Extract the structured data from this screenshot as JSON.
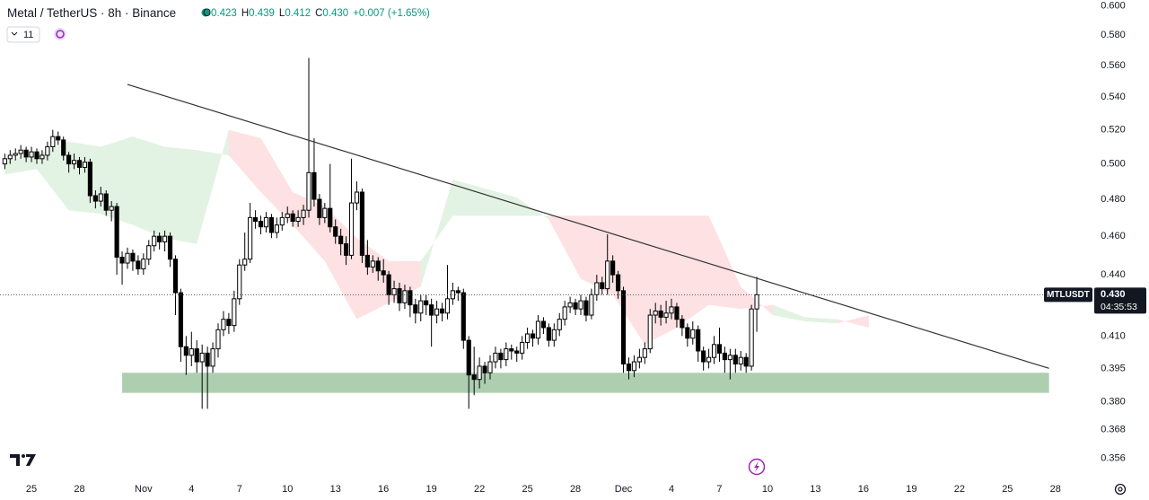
{
  "header": {
    "symbol": "Metal / TetherUS · 8h · Binance",
    "ohlc_names": [
      "O",
      "H",
      "L",
      "C"
    ],
    "ohlc_values": [
      {
        "value": 0.423,
        "label": "0.423"
      },
      {
        "value": 0.439,
        "label": "0.439"
      },
      {
        "value": 0.412,
        "label": "0.412"
      },
      {
        "value": 0.43,
        "label": "0.430"
      }
    ],
    "change": "+0.007 (+1.65%)",
    "indicators": "11"
  },
  "chart_data": {
    "type": "candlestick",
    "log": true,
    "up_color": "#ffffff",
    "down_color": "#000000",
    "outline_color": "#000000",
    "xlim": [
      0.1,
      204.6
    ],
    "ylim": [
      0.349,
      0.604
    ],
    "xticks": [
      {
        "value": 6,
        "label": "25"
      },
      {
        "value": 15,
        "label": "28"
      },
      {
        "value": 27,
        "label": "Nov"
      },
      {
        "value": 36,
        "label": "4"
      },
      {
        "value": 45,
        "label": "7"
      },
      {
        "value": 54,
        "label": "10"
      },
      {
        "value": 63,
        "label": "13"
      },
      {
        "value": 72,
        "label": "16"
      },
      {
        "value": 81,
        "label": "19"
      },
      {
        "value": 90,
        "label": "22"
      },
      {
        "value": 99,
        "label": "25"
      },
      {
        "value": 108,
        "label": "28"
      },
      {
        "value": 117,
        "label": "Dec"
      },
      {
        "value": 126,
        "label": "4"
      },
      {
        "value": 135,
        "label": "7"
      },
      {
        "value": 144,
        "label": "10"
      },
      {
        "value": 153,
        "label": "13"
      },
      {
        "value": 162,
        "label": "16"
      },
      {
        "value": 171,
        "label": "19"
      },
      {
        "value": 180,
        "label": "22"
      },
      {
        "value": 189,
        "label": "25"
      },
      {
        "value": 198,
        "label": "28"
      }
    ],
    "yticks": [
      {
        "value": 0.6,
        "label": "0.600"
      },
      {
        "value": 0.58,
        "label": "0.580"
      },
      {
        "value": 0.56,
        "label": "0.560"
      },
      {
        "value": 0.54,
        "label": "0.540"
      },
      {
        "value": 0.52,
        "label": "0.520"
      },
      {
        "value": 0.5,
        "label": "0.500"
      },
      {
        "value": 0.48,
        "label": "0.480"
      },
      {
        "value": 0.46,
        "label": "0.460"
      },
      {
        "value": 0.44,
        "label": "0.440"
      },
      {
        "value": 0.41,
        "label": "0.410"
      },
      {
        "value": 0.395,
        "label": "0.395"
      },
      {
        "value": 0.38,
        "label": "0.380"
      },
      {
        "value": 0.368,
        "label": "0.368"
      },
      {
        "value": 0.356,
        "label": "0.356"
      }
    ],
    "x": [
      1,
      2,
      3,
      4,
      5,
      6,
      7,
      8,
      9,
      10,
      11,
      12,
      13,
      14,
      15,
      16,
      17,
      18,
      19,
      20,
      21,
      22,
      23,
      24,
      25,
      26,
      27,
      28,
      29,
      30,
      31,
      32,
      33,
      34,
      35,
      36,
      37,
      38,
      39,
      40,
      41,
      42,
      43,
      44,
      45,
      46,
      47,
      48,
      49,
      50,
      51,
      52,
      53,
      54,
      55,
      56,
      57,
      58,
      59,
      60,
      61,
      62,
      63,
      64,
      65,
      66,
      67,
      68,
      69,
      70,
      71,
      72,
      73,
      74,
      75,
      76,
      77,
      78,
      79,
      80,
      81,
      82,
      83,
      84,
      85,
      86,
      87,
      88,
      89,
      90,
      91,
      92,
      93,
      94,
      95,
      96,
      97,
      98,
      99,
      100,
      101,
      102,
      103,
      104,
      105,
      106,
      107,
      108,
      109,
      110,
      111,
      112,
      113,
      114,
      115,
      116,
      117,
      118,
      119,
      120,
      121,
      122,
      123,
      124,
      125,
      126,
      127,
      128,
      129,
      130,
      131,
      132,
      133,
      134,
      135,
      136,
      137,
      138,
      139,
      140,
      141,
      142
    ],
    "open": [
      0.5,
      0.503,
      0.505,
      0.506,
      0.508,
      0.504,
      0.507,
      0.503,
      0.505,
      0.51,
      0.516,
      0.514,
      0.505,
      0.5,
      0.502,
      0.498,
      0.501,
      0.482,
      0.479,
      0.483,
      0.474,
      0.476,
      0.449,
      0.446,
      0.451,
      0.447,
      0.443,
      0.448,
      0.455,
      0.46,
      0.457,
      0.46,
      0.448,
      0.431,
      0.405,
      0.401,
      0.404,
      0.398,
      0.402,
      0.396,
      0.404,
      0.413,
      0.418,
      0.415,
      0.428,
      0.445,
      0.448,
      0.47,
      0.468,
      0.465,
      0.47,
      0.462,
      0.466,
      0.47,
      0.472,
      0.468,
      0.47,
      0.474,
      0.495,
      0.48,
      0.47,
      0.475,
      0.465,
      0.46,
      0.456,
      0.45,
      0.478,
      0.484,
      0.45,
      0.444,
      0.447,
      0.442,
      0.44,
      0.43,
      0.433,
      0.426,
      0.432,
      0.425,
      0.421,
      0.427,
      0.425,
      0.42,
      0.423,
      0.421,
      0.428,
      0.432,
      0.431,
      0.408,
      0.392,
      0.39,
      0.396,
      0.393,
      0.398,
      0.402,
      0.399,
      0.404,
      0.403,
      0.402,
      0.407,
      0.411,
      0.409,
      0.417,
      0.414,
      0.408,
      0.413,
      0.418,
      0.424,
      0.426,
      0.423,
      0.427,
      0.42,
      0.43,
      0.436,
      0.433,
      0.447,
      0.44,
      0.432,
      0.397,
      0.394,
      0.398,
      0.4,
      0.404,
      0.42,
      0.422,
      0.419,
      0.421,
      0.424,
      0.418,
      0.414,
      0.409,
      0.413,
      0.403,
      0.398,
      0.4,
      0.406,
      0.402,
      0.399,
      0.401,
      0.397,
      0.4,
      0.396,
      0.423
    ],
    "high": [
      0.506,
      0.508,
      0.509,
      0.511,
      0.51,
      0.51,
      0.509,
      0.508,
      0.513,
      0.52,
      0.519,
      0.516,
      0.507,
      0.506,
      0.504,
      0.504,
      0.503,
      0.485,
      0.487,
      0.485,
      0.479,
      0.478,
      0.452,
      0.454,
      0.453,
      0.45,
      0.451,
      0.458,
      0.463,
      0.462,
      0.463,
      0.462,
      0.45,
      0.433,
      0.41,
      0.412,
      0.408,
      0.406,
      0.405,
      0.407,
      0.416,
      0.422,
      0.421,
      0.432,
      0.448,
      0.462,
      0.478,
      0.474,
      0.471,
      0.473,
      0.472,
      0.47,
      0.473,
      0.476,
      0.474,
      0.474,
      0.477,
      0.565,
      0.515,
      0.483,
      0.478,
      0.5,
      0.469,
      0.464,
      0.46,
      0.503,
      0.49,
      0.486,
      0.458,
      0.45,
      0.449,
      0.448,
      0.442,
      0.437,
      0.436,
      0.435,
      0.434,
      0.428,
      0.43,
      0.43,
      0.428,
      0.427,
      0.426,
      0.445,
      0.436,
      0.434,
      0.433,
      0.41,
      0.405,
      0.4,
      0.398,
      0.401,
      0.405,
      0.404,
      0.407,
      0.406,
      0.405,
      0.41,
      0.414,
      0.413,
      0.42,
      0.419,
      0.416,
      0.416,
      0.421,
      0.427,
      0.429,
      0.428,
      0.43,
      0.429,
      0.433,
      0.44,
      0.439,
      0.461,
      0.45,
      0.442,
      0.434,
      0.4,
      0.401,
      0.404,
      0.407,
      0.423,
      0.426,
      0.425,
      0.427,
      0.428,
      0.426,
      0.42,
      0.416,
      0.417,
      0.415,
      0.405,
      0.404,
      0.41,
      0.414,
      0.405,
      0.404,
      0.404,
      0.403,
      0.402,
      0.425,
      0.439
    ],
    "low": [
      0.497,
      0.5,
      0.502,
      0.503,
      0.501,
      0.501,
      0.5,
      0.5,
      0.502,
      0.507,
      0.511,
      0.502,
      0.495,
      0.497,
      0.494,
      0.495,
      0.478,
      0.475,
      0.476,
      0.471,
      0.468,
      0.44,
      0.435,
      0.443,
      0.442,
      0.44,
      0.44,
      0.445,
      0.452,
      0.453,
      0.452,
      0.444,
      0.42,
      0.398,
      0.392,
      0.396,
      0.393,
      0.377,
      0.377,
      0.393,
      0.4,
      0.41,
      0.411,
      0.412,
      0.425,
      0.442,
      0.446,
      0.464,
      0.461,
      0.462,
      0.459,
      0.459,
      0.463,
      0.467,
      0.465,
      0.465,
      0.466,
      0.47,
      0.476,
      0.466,
      0.467,
      0.462,
      0.456,
      0.45,
      0.445,
      0.448,
      0.474,
      0.446,
      0.44,
      0.441,
      0.437,
      0.436,
      0.425,
      0.426,
      0.422,
      0.423,
      0.419,
      0.416,
      0.417,
      0.42,
      0.405,
      0.416,
      0.417,
      0.418,
      0.425,
      0.427,
      0.404,
      0.377,
      0.383,
      0.386,
      0.388,
      0.39,
      0.395,
      0.395,
      0.396,
      0.399,
      0.398,
      0.399,
      0.404,
      0.405,
      0.406,
      0.411,
      0.405,
      0.405,
      0.41,
      0.415,
      0.421,
      0.42,
      0.42,
      0.417,
      0.418,
      0.427,
      0.43,
      0.43,
      0.436,
      0.428,
      0.393,
      0.39,
      0.391,
      0.395,
      0.397,
      0.402,
      0.416,
      0.415,
      0.416,
      0.418,
      0.414,
      0.41,
      0.405,
      0.406,
      0.398,
      0.394,
      0.395,
      0.397,
      0.398,
      0.393,
      0.39,
      0.393,
      0.394,
      0.393,
      0.394,
      0.412
    ],
    "close": [
      0.503,
      0.505,
      0.506,
      0.508,
      0.504,
      0.507,
      0.503,
      0.505,
      0.51,
      0.516,
      0.514,
      0.505,
      0.5,
      0.502,
      0.498,
      0.501,
      0.482,
      0.479,
      0.483,
      0.474,
      0.476,
      0.449,
      0.446,
      0.451,
      0.447,
      0.443,
      0.448,
      0.455,
      0.46,
      0.457,
      0.46,
      0.448,
      0.431,
      0.405,
      0.401,
      0.404,
      0.398,
      0.402,
      0.396,
      0.404,
      0.413,
      0.418,
      0.415,
      0.428,
      0.445,
      0.448,
      0.47,
      0.468,
      0.465,
      0.47,
      0.462,
      0.466,
      0.47,
      0.472,
      0.468,
      0.47,
      0.474,
      0.495,
      0.48,
      0.47,
      0.475,
      0.465,
      0.46,
      0.456,
      0.45,
      0.478,
      0.484,
      0.45,
      0.444,
      0.447,
      0.442,
      0.44,
      0.43,
      0.433,
      0.426,
      0.432,
      0.425,
      0.421,
      0.427,
      0.425,
      0.42,
      0.423,
      0.421,
      0.428,
      0.432,
      0.431,
      0.408,
      0.392,
      0.39,
      0.396,
      0.393,
      0.398,
      0.402,
      0.399,
      0.404,
      0.403,
      0.402,
      0.407,
      0.411,
      0.409,
      0.417,
      0.414,
      0.408,
      0.413,
      0.418,
      0.424,
      0.426,
      0.423,
      0.427,
      0.42,
      0.43,
      0.436,
      0.433,
      0.447,
      0.44,
      0.432,
      0.397,
      0.394,
      0.398,
      0.4,
      0.404,
      0.42,
      0.422,
      0.419,
      0.421,
      0.424,
      0.418,
      0.414,
      0.409,
      0.413,
      0.403,
      0.398,
      0.4,
      0.406,
      0.402,
      0.399,
      0.401,
      0.397,
      0.4,
      0.396,
      0.423,
      0.43
    ],
    "cloud": {
      "up_color": "rgba(76,175,80,0.16)",
      "down_color": "rgba(242,54,69,0.15)",
      "x": [
        1,
        7,
        13,
        19,
        25,
        31,
        37,
        43,
        49,
        55,
        61,
        67,
        73,
        79,
        85,
        91,
        97,
        103,
        109,
        115,
        121,
        127,
        133,
        139,
        145,
        151,
        157,
        163
      ],
      "span_a": [
        0.502,
        0.505,
        0.513,
        0.51,
        0.516,
        0.51,
        0.508,
        0.505,
        0.484,
        0.466,
        0.447,
        0.418,
        0.426,
        0.434,
        0.491,
        0.486,
        0.481,
        0.469,
        0.438,
        0.43,
        0.406,
        0.414,
        0.425,
        0.423,
        0.425,
        0.419,
        0.418,
        0.414
      ],
      "span_b": [
        0.494,
        0.497,
        0.474,
        0.472,
        0.466,
        0.459,
        0.456,
        0.52,
        0.515,
        0.484,
        0.476,
        0.459,
        0.447,
        0.447,
        0.471,
        0.471,
        0.471,
        0.471,
        0.471,
        0.471,
        0.471,
        0.471,
        0.471,
        0.434,
        0.42,
        0.417,
        0.416,
        0.42
      ]
    },
    "trendline": {
      "x": [
        24,
        196.8
      ],
      "y": [
        0.548,
        0.395
      ],
      "color": "#333333"
    },
    "support_zone": {
      "x": [
        23,
        196.8
      ],
      "y": [
        0.384,
        0.393
      ],
      "color": "rgba(106,168,112,0.55)"
    },
    "symbol_tag": "MTLUSDT",
    "last_price": {
      "value": 0.43,
      "label": "0.430"
    },
    "countdown": "04:35:53"
  }
}
